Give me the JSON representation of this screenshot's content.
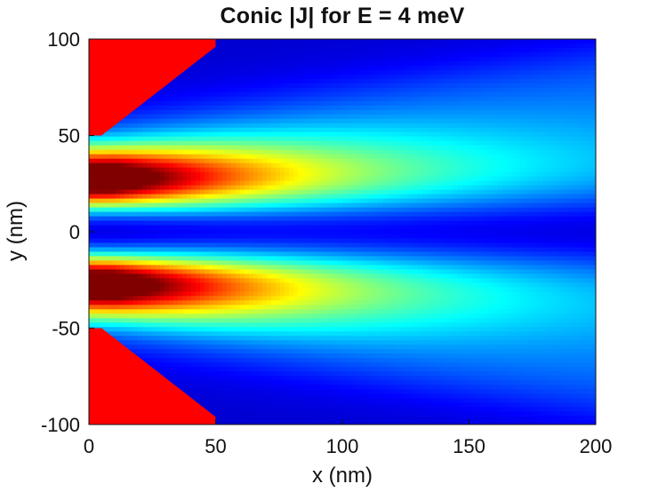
{
  "chart_data": {
    "type": "heatmap",
    "title": "Conic |J| for E = 4 meV",
    "xlabel": "x (nm)",
    "ylabel": "y (nm)",
    "xlim": [
      0,
      200
    ],
    "ylim": [
      -100,
      100
    ],
    "x_ticks": [
      0,
      50,
      100,
      150,
      200
    ],
    "y_ticks": [
      -100,
      -50,
      0,
      50,
      100
    ],
    "x_tick_labels": [
      "0",
      "50",
      "100",
      "150",
      "200"
    ],
    "y_tick_labels": [
      "-100",
      "-50",
      "0",
      "50",
      "100"
    ],
    "colormap": "jet",
    "grid": false,
    "legend": "none",
    "barrier_color": "#ff0000",
    "barrier_regions": [
      {
        "name": "upper barrier",
        "points": [
          [
            0,
            100
          ],
          [
            0,
            50
          ],
          [
            5,
            50
          ],
          [
            50,
            96
          ],
          [
            50,
            100
          ]
        ]
      },
      {
        "name": "lower barrier",
        "points": [
          [
            0,
            -100
          ],
          [
            0,
            -50
          ],
          [
            5,
            -50
          ],
          [
            50,
            -96
          ],
          [
            50,
            -100
          ]
        ]
      }
    ],
    "intensity_lobes": [
      {
        "name": "upper lobe",
        "center_x": 10,
        "center_y": 27,
        "peak_value": 1.0,
        "spread_x": 90,
        "spread_y": 12
      },
      {
        "name": "lower lobe",
        "center_x": 10,
        "center_y": -27,
        "peak_value": 1.0,
        "spread_x": 90,
        "spread_y": 12
      }
    ],
    "minimum_line": {
      "name": "center minimum",
      "y": 0
    }
  }
}
